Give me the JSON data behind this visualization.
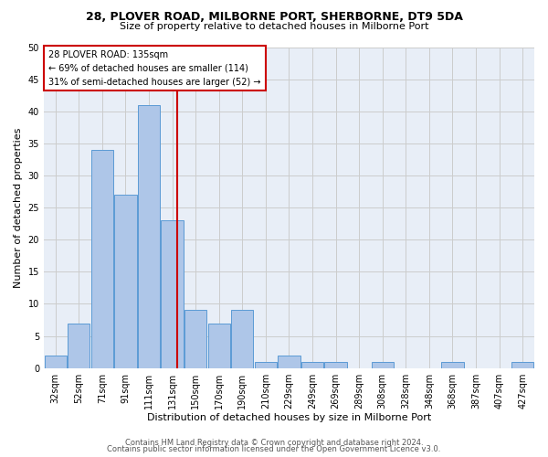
{
  "title": "28, PLOVER ROAD, MILBORNE PORT, SHERBORNE, DT9 5DA",
  "subtitle": "Size of property relative to detached houses in Milborne Port",
  "xlabel": "Distribution of detached houses by size in Milborne Port",
  "ylabel": "Number of detached properties",
  "footer_line1": "Contains HM Land Registry data © Crown copyright and database right 2024.",
  "footer_line2": "Contains public sector information licensed under the Open Government Licence v3.0.",
  "bar_labels": [
    "32sqm",
    "52sqm",
    "71sqm",
    "91sqm",
    "111sqm",
    "131sqm",
    "150sqm",
    "170sqm",
    "190sqm",
    "210sqm",
    "229sqm",
    "249sqm",
    "269sqm",
    "289sqm",
    "308sqm",
    "328sqm",
    "348sqm",
    "368sqm",
    "387sqm",
    "407sqm",
    "427sqm"
  ],
  "bar_values": [
    2,
    7,
    34,
    27,
    41,
    23,
    9,
    7,
    9,
    1,
    2,
    1,
    1,
    0,
    1,
    0,
    0,
    1,
    0,
    0,
    1
  ],
  "bar_color": "#aec6e8",
  "bar_edge_color": "#5b9bd5",
  "ref_line_color": "#cc0000",
  "annotation_line1": "28 PLOVER ROAD: 135sqm",
  "annotation_line2": "← 69% of detached houses are smaller (114)",
  "annotation_line3": "31% of semi-detached houses are larger (52) →",
  "annotation_box_color": "#ffffff",
  "annotation_box_edge_color": "#cc0000",
  "ylim": [
    0,
    50
  ],
  "yticks": [
    0,
    5,
    10,
    15,
    20,
    25,
    30,
    35,
    40,
    45,
    50
  ],
  "grid_color": "#cccccc",
  "background_color": "#ffffff",
  "plot_bg_color": "#e8eef7",
  "title_fontsize": 9,
  "subtitle_fontsize": 8,
  "ylabel_fontsize": 8,
  "xlabel_fontsize": 8,
  "tick_fontsize": 7,
  "footer_fontsize": 6,
  "annotation_fontsize": 7
}
